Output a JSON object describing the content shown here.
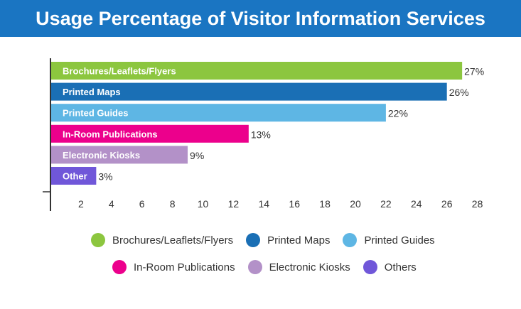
{
  "header": {
    "title": "Usage Percentage of Visitor Information Services"
  },
  "chart_data": {
    "type": "bar",
    "orientation": "horizontal",
    "categories": [
      "Brochures/Leaflets/Flyers",
      "Printed Maps",
      "Printed Guides",
      "In-Room Publications",
      "Electronic Kiosks",
      "Other"
    ],
    "values": [
      27,
      26,
      22,
      13,
      9,
      3
    ],
    "value_labels": [
      "27%",
      "26%",
      "22%",
      "13%",
      "9%",
      "3%"
    ],
    "colors": [
      "#8cc63f",
      "#1a6fb5",
      "#5eb6e4",
      "#ec008c",
      "#b391c8",
      "#7057d9"
    ],
    "x_ticks": [
      "2",
      "4",
      "6",
      "8",
      "10",
      "12",
      "14",
      "16",
      "18",
      "20",
      "22",
      "24",
      "26",
      "28"
    ],
    "xlim": [
      0,
      28
    ],
    "grid": false,
    "legend_position": "bottom",
    "legend": [
      {
        "label": "Brochures/Leaflets/Flyers",
        "color": "#8cc63f"
      },
      {
        "label": "Printed Maps",
        "color": "#1a6fb5"
      },
      {
        "label": "Printed Guides",
        "color": "#5eb6e4"
      },
      {
        "label": "In-Room Publications",
        "color": "#ec008c"
      },
      {
        "label": "Electronic Kiosks",
        "color": "#b391c8"
      },
      {
        "label": "Others",
        "color": "#7057d9"
      }
    ]
  }
}
